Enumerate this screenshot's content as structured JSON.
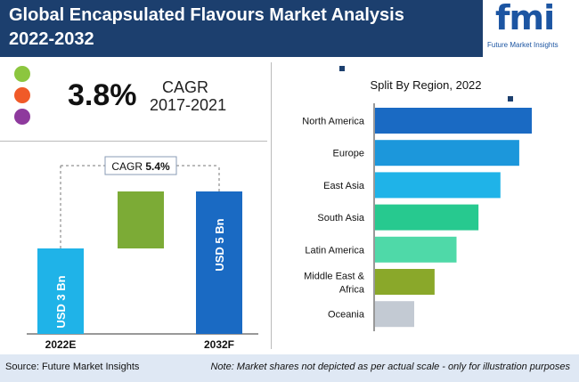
{
  "header": {
    "title_line1": "Global Encapsulated Flavours Market Analysis",
    "title_line2": "2022-2032",
    "logo_text": "fmi",
    "logo_sub": "Future Market Insights"
  },
  "kpi": {
    "value": "3.8%",
    "label": "CAGR",
    "period": "2017-2021",
    "dot_colors": [
      "#8cc63f",
      "#f05a28",
      "#8e3a9d"
    ]
  },
  "footer": {
    "source": "Source: Future Market Insights",
    "note": "Note: Market shares not depicted as per actual scale - only for illustration purposes"
  },
  "chart_data": [
    {
      "type": "bar",
      "chart": "market-size-waterfall",
      "categories": [
        "2022E",
        "2032F"
      ],
      "values": [
        3,
        5
      ],
      "bar_labels": [
        "USD 3 Bn",
        "USD 5 Bn"
      ],
      "increment_label": "CAGR",
      "increment_value": "5.4%",
      "colors": {
        "2022E": "#1fb3e8",
        "increment": "#7cab36",
        "2032F": "#1a6ac3"
      }
    },
    {
      "type": "bar",
      "orientation": "horizontal",
      "title": "Split By Region, 2022",
      "categories": [
        "North America",
        "Europe",
        "East Asia",
        "South Asia",
        "Latin America",
        "Middle East & Africa",
        "Oceania"
      ],
      "category_lines": [
        [
          "North America"
        ],
        [
          "Europe"
        ],
        [
          "East Asia"
        ],
        [
          "South Asia"
        ],
        [
          "Latin America"
        ],
        [
          "Middle East &",
          "Africa"
        ],
        [
          "Oceania"
        ]
      ],
      "values": [
        100,
        92,
        80,
        66,
        52,
        38,
        25
      ],
      "colors": [
        "#1a6ac3",
        "#1c97db",
        "#1fb3e8",
        "#27c98f",
        "#4fd9a8",
        "#8aa82a",
        "#c3cad3"
      ]
    }
  ]
}
